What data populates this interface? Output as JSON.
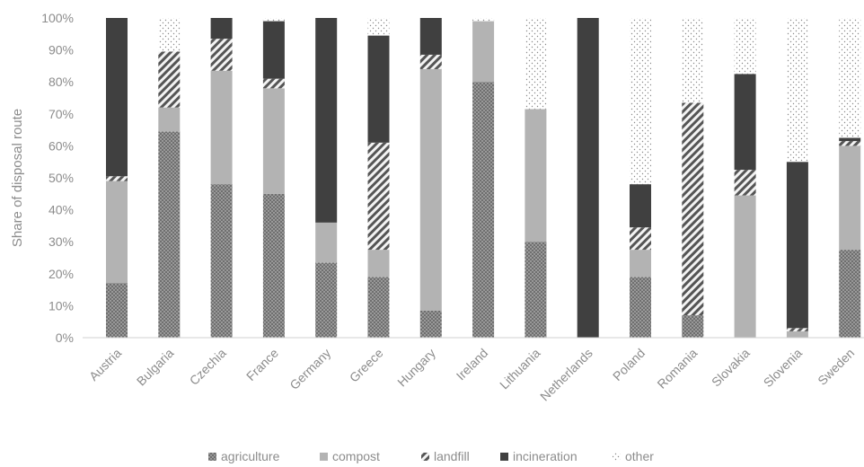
{
  "chart_data": {
    "type": "bar",
    "stacked": true,
    "title": "",
    "xlabel": "",
    "ylabel": "Share of disposal route",
    "ylim": [
      0,
      100
    ],
    "yticks": [
      "0%",
      "10%",
      "20%",
      "30%",
      "40%",
      "50%",
      "60%",
      "70%",
      "80%",
      "90%",
      "100%"
    ],
    "grid": false,
    "legend_position": "bottom",
    "categories": [
      "Austria",
      "Bulgaria",
      "Czechia",
      "France",
      "Germany",
      "Greece",
      "Hungary",
      "Ireland",
      "Lithuania",
      "Netherlands",
      "Poland",
      "Romania",
      "Slovakia",
      "Slovenia",
      "Sweden"
    ],
    "series": [
      {
        "name": "agriculture",
        "key": "agriculture",
        "color": "#6f6f6f",
        "pattern": "dots",
        "values": [
          17,
          64.5,
          48,
          45,
          23.5,
          19,
          8.5,
          80,
          30,
          0,
          19,
          7,
          0,
          0,
          27.5
        ]
      },
      {
        "name": "compost",
        "key": "compost",
        "color": "#b3b3b3",
        "pattern": "solid",
        "values": [
          32,
          7.5,
          35.5,
          33,
          12.5,
          8.5,
          75.5,
          19,
          41.5,
          0,
          8.5,
          0,
          44.5,
          2,
          32.5
        ]
      },
      {
        "name": "landfill",
        "key": "landfill",
        "color": "#5a5a5a",
        "pattern": "hatch",
        "values": [
          1.5,
          17.5,
          10,
          3,
          0,
          33.5,
          4.5,
          0,
          0,
          0,
          7,
          66.5,
          8,
          1,
          1.5
        ]
      },
      {
        "name": "incineration",
        "key": "incineration",
        "color": "#404040",
        "pattern": "solid",
        "values": [
          49.5,
          0,
          6.5,
          18,
          64,
          33.5,
          11.5,
          0,
          0,
          100,
          13.5,
          0,
          30,
          52,
          1
        ]
      },
      {
        "name": "other",
        "key": "other",
        "color": "#9a9a9a",
        "pattern": "sparse-dots",
        "values": [
          0,
          10.5,
          0,
          1,
          0,
          5.5,
          0,
          1,
          28.5,
          0,
          52,
          26.5,
          17.5,
          45,
          37.5
        ]
      }
    ]
  }
}
